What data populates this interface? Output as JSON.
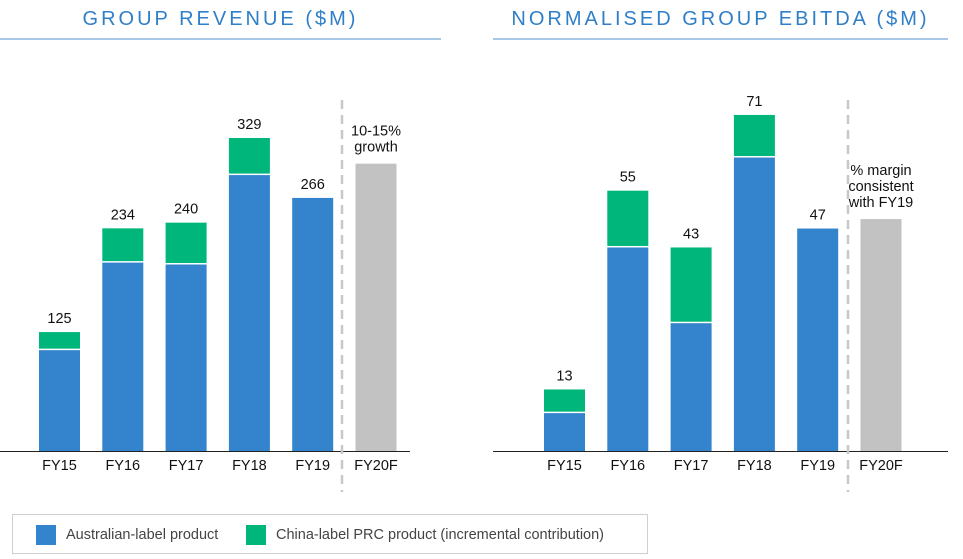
{
  "colors": {
    "australian": "#3383cd",
    "china": "#00b67a",
    "forecast": "#c2c2c2",
    "title": "#2f7fc8"
  },
  "legend": {
    "australian_label": "Australian-label product",
    "china_label": "China-label PRC product (incremental contribution)"
  },
  "chart_data": [
    {
      "type": "bar",
      "title": "GROUP REVENUE ($M)",
      "categories": [
        "FY15",
        "FY16",
        "FY17",
        "FY18",
        "FY19",
        "FY20F"
      ],
      "series": [
        {
          "name": "Australian-label product",
          "values": [
            106,
            198,
            196,
            290,
            266,
            null
          ]
        },
        {
          "name": "China-label PRC product (incremental contribution)",
          "values": [
            19,
            36,
            44,
            39,
            0,
            null
          ]
        }
      ],
      "totals": [
        "125",
        "234",
        "240",
        "329",
        "266",
        ""
      ],
      "forecast": {
        "category": "FY20F",
        "estimate": 302,
        "annotation": [
          "10-15%",
          "growth"
        ]
      },
      "ylim": [
        0,
        350
      ]
    },
    {
      "type": "bar",
      "title": "NORMALISED GROUP EBITDA ($M)",
      "categories": [
        "FY15",
        "FY16",
        "FY17",
        "FY18",
        "FY19",
        "FY20F"
      ],
      "series": [
        {
          "name": "Australian-label product",
          "values": [
            8,
            43,
            27,
            62,
            47,
            null
          ]
        },
        {
          "name": "China-label PRC product (incremental contribution)",
          "values": [
            5,
            12,
            16,
            9,
            0,
            null
          ]
        }
      ],
      "totals": [
        "13",
        "55",
        "43",
        "71",
        "47",
        ""
      ],
      "forecast": {
        "category": "FY20F",
        "estimate": 49,
        "annotation": [
          "% margin",
          "consistent",
          "with FY19"
        ]
      },
      "ylim": [
        0,
        75
      ]
    }
  ]
}
